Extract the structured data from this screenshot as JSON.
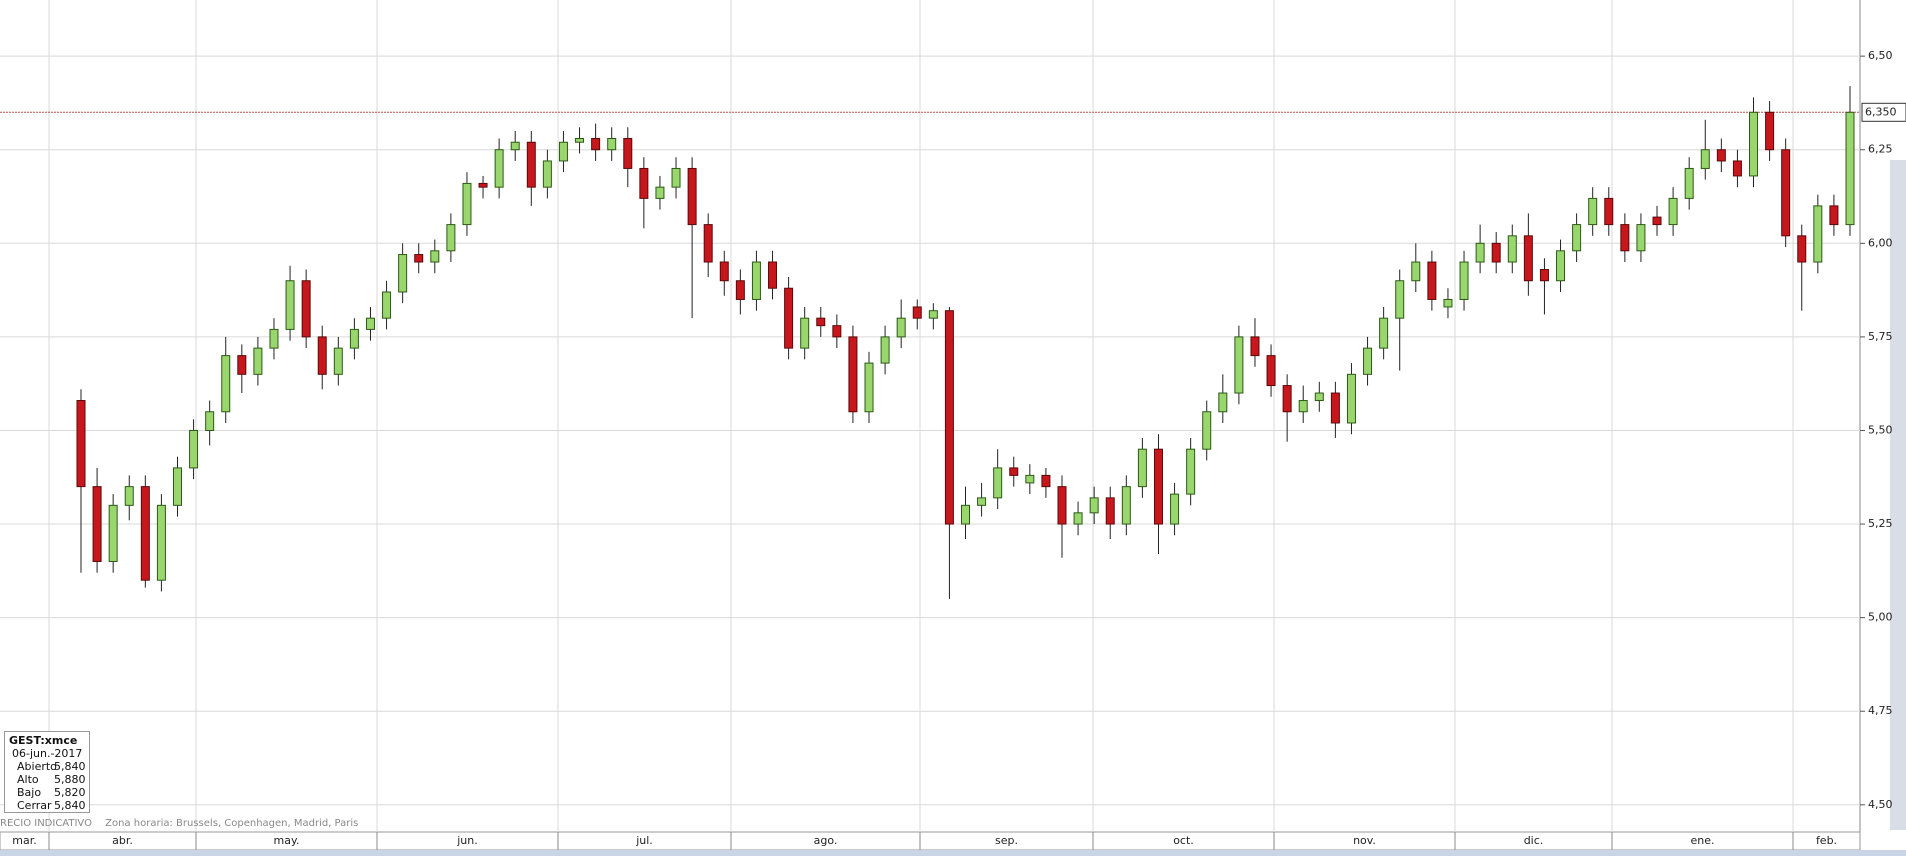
{
  "chart_data": {
    "type": "candlestick",
    "up_color": "#9ad66e",
    "down_color": "#c8161d",
    "grid": true,
    "ylim": [
      4.43,
      6.65
    ],
    "yticks": [
      {
        "value": 4.5,
        "label": "4,50"
      },
      {
        "value": 4.75,
        "label": "4,75"
      },
      {
        "value": 5.0,
        "label": "5,00"
      },
      {
        "value": 5.25,
        "label": "5,25"
      },
      {
        "value": 5.5,
        "label": "5,50"
      },
      {
        "value": 5.75,
        "label": "5,75"
      },
      {
        "value": 6.0,
        "label": "6,00"
      },
      {
        "value": 6.25,
        "label": "6,25"
      },
      {
        "value": 6.5,
        "label": "6,50"
      }
    ],
    "months": [
      "mar.",
      "abr.",
      "may.",
      "jun.",
      "jul.",
      "ago.",
      "sep.",
      "oct.",
      "nov.",
      "dic.",
      "ene.",
      "feb."
    ],
    "price_line": {
      "value": 6.35,
      "label": "6,350"
    },
    "open": [
      5.58,
      5.35,
      5.15,
      5.3,
      5.35,
      5.1,
      5.3,
      5.4,
      5.5,
      5.55,
      5.7,
      5.65,
      5.72,
      5.77,
      5.9,
      5.75,
      5.65,
      5.72,
      5.77,
      5.8,
      5.87,
      5.97,
      5.95,
      5.98,
      6.05,
      6.16,
      6.15,
      6.25,
      6.27,
      6.15,
      6.22,
      6.27,
      6.28,
      6.25,
      6.28,
      6.2,
      6.12,
      6.15,
      6.2,
      6.05,
      5.95,
      5.9,
      5.85,
      5.95,
      5.88,
      5.72,
      5.8,
      5.78,
      5.75,
      5.55,
      5.68,
      5.75,
      5.83,
      5.8,
      5.82,
      5.25,
      5.3,
      5.32,
      5.4,
      5.36,
      5.38,
      5.35,
      5.25,
      5.28,
      5.32,
      5.25,
      5.35,
      5.45,
      5.25,
      5.33,
      5.45,
      5.55,
      5.6,
      5.75,
      5.7,
      5.62,
      5.55,
      5.58,
      5.6,
      5.52,
      5.65,
      5.72,
      5.8,
      5.9,
      5.95,
      5.83,
      5.85,
      5.95,
      6.0,
      5.95,
      6.02,
      5.93,
      5.9,
      5.98,
      6.05,
      6.12,
      6.05,
      5.98,
      6.07,
      6.05,
      6.12,
      6.2,
      6.25,
      6.22,
      6.18,
      6.35,
      6.25,
      6.02,
      5.95,
      6.1,
      6.05
    ],
    "high": [
      5.61,
      5.4,
      5.33,
      5.38,
      5.38,
      5.33,
      5.43,
      5.53,
      5.58,
      5.75,
      5.73,
      5.75,
      5.8,
      5.94,
      5.93,
      5.78,
      5.75,
      5.8,
      5.83,
      5.9,
      6.0,
      6.0,
      6.01,
      6.08,
      6.19,
      6.18,
      6.28,
      6.3,
      6.3,
      6.25,
      6.3,
      6.31,
      6.32,
      6.31,
      6.31,
      6.23,
      6.18,
      6.23,
      6.23,
      6.08,
      5.98,
      5.93,
      5.98,
      5.98,
      5.91,
      5.83,
      5.83,
      5.81,
      5.78,
      5.71,
      5.78,
      5.85,
      5.85,
      5.84,
      5.83,
      5.35,
      5.36,
      5.45,
      5.43,
      5.41,
      5.4,
      5.38,
      5.31,
      5.35,
      5.35,
      5.38,
      5.48,
      5.49,
      5.36,
      5.48,
      5.58,
      5.65,
      5.78,
      5.8,
      5.73,
      5.65,
      5.62,
      5.63,
      5.63,
      5.68,
      5.75,
      5.83,
      5.93,
      6.0,
      5.98,
      5.88,
      5.98,
      6.05,
      6.03,
      6.05,
      6.08,
      5.96,
      6.01,
      6.08,
      6.15,
      6.15,
      6.08,
      6.08,
      6.1,
      6.15,
      6.23,
      6.33,
      6.28,
      6.25,
      6.39,
      6.38,
      6.28,
      6.05,
      6.13,
      6.13,
      6.42
    ],
    "low": [
      5.12,
      5.12,
      5.12,
      5.26,
      5.08,
      5.07,
      5.27,
      5.37,
      5.46,
      5.52,
      5.6,
      5.62,
      5.69,
      5.74,
      5.72,
      5.61,
      5.62,
      5.69,
      5.74,
      5.77,
      5.84,
      5.92,
      5.92,
      5.95,
      6.02,
      6.12,
      6.12,
      6.22,
      6.1,
      6.12,
      6.19,
      6.24,
      6.22,
      6.22,
      6.15,
      6.04,
      6.09,
      6.12,
      5.8,
      5.91,
      5.86,
      5.81,
      5.82,
      5.85,
      5.69,
      5.69,
      5.75,
      5.72,
      5.52,
      5.52,
      5.65,
      5.72,
      5.77,
      5.77,
      5.05,
      5.21,
      5.27,
      5.29,
      5.35,
      5.33,
      5.32,
      5.16,
      5.22,
      5.25,
      5.21,
      5.22,
      5.32,
      5.17,
      5.22,
      5.3,
      5.42,
      5.52,
      5.57,
      5.67,
      5.59,
      5.47,
      5.52,
      5.55,
      5.48,
      5.49,
      5.62,
      5.69,
      5.66,
      5.87,
      5.82,
      5.8,
      5.82,
      5.92,
      5.92,
      5.92,
      5.86,
      5.81,
      5.87,
      5.95,
      6.02,
      6.02,
      5.95,
      5.95,
      6.02,
      6.02,
      6.09,
      6.17,
      6.19,
      6.15,
      6.15,
      6.22,
      5.99,
      5.82,
      5.92,
      6.02,
      6.02
    ],
    "close": [
      5.35,
      5.15,
      5.3,
      5.35,
      5.1,
      5.3,
      5.4,
      5.5,
      5.55,
      5.7,
      5.65,
      5.72,
      5.77,
      5.9,
      5.75,
      5.65,
      5.72,
      5.77,
      5.8,
      5.87,
      5.97,
      5.95,
      5.98,
      6.05,
      6.16,
      6.15,
      6.25,
      6.27,
      6.15,
      6.22,
      6.27,
      6.28,
      6.25,
      6.28,
      6.2,
      6.12,
      6.15,
      6.2,
      6.05,
      5.95,
      5.9,
      5.85,
      5.95,
      5.88,
      5.72,
      5.8,
      5.78,
      5.75,
      5.55,
      5.68,
      5.75,
      5.8,
      5.8,
      5.82,
      5.25,
      5.3,
      5.32,
      5.4,
      5.38,
      5.38,
      5.35,
      5.25,
      5.28,
      5.32,
      5.25,
      5.35,
      5.45,
      5.25,
      5.33,
      5.45,
      5.55,
      5.6,
      5.75,
      5.7,
      5.62,
      5.55,
      5.58,
      5.6,
      5.52,
      5.65,
      5.72,
      5.8,
      5.9,
      5.95,
      5.85,
      5.85,
      5.95,
      6.0,
      5.95,
      6.02,
      5.9,
      5.9,
      5.98,
      6.05,
      6.12,
      6.05,
      5.98,
      6.05,
      6.05,
      6.12,
      6.2,
      6.25,
      6.22,
      6.18,
      6.35,
      6.25,
      6.02,
      5.95,
      6.1,
      6.05,
      6.35
    ]
  },
  "info_box": {
    "symbol": "GEST:xmce",
    "date": "06-jun.-2017",
    "rows": [
      [
        "Abierto",
        "5,840"
      ],
      [
        "Alto",
        "5,880"
      ],
      [
        "Bajo",
        "5,820"
      ],
      [
        "Cerrar",
        "5,840"
      ]
    ]
  },
  "status": {
    "label": "RECIO INDICATIVO",
    "timezone": "Zona horaria: Brussels, Copenhagen, Madrid, Paris"
  }
}
